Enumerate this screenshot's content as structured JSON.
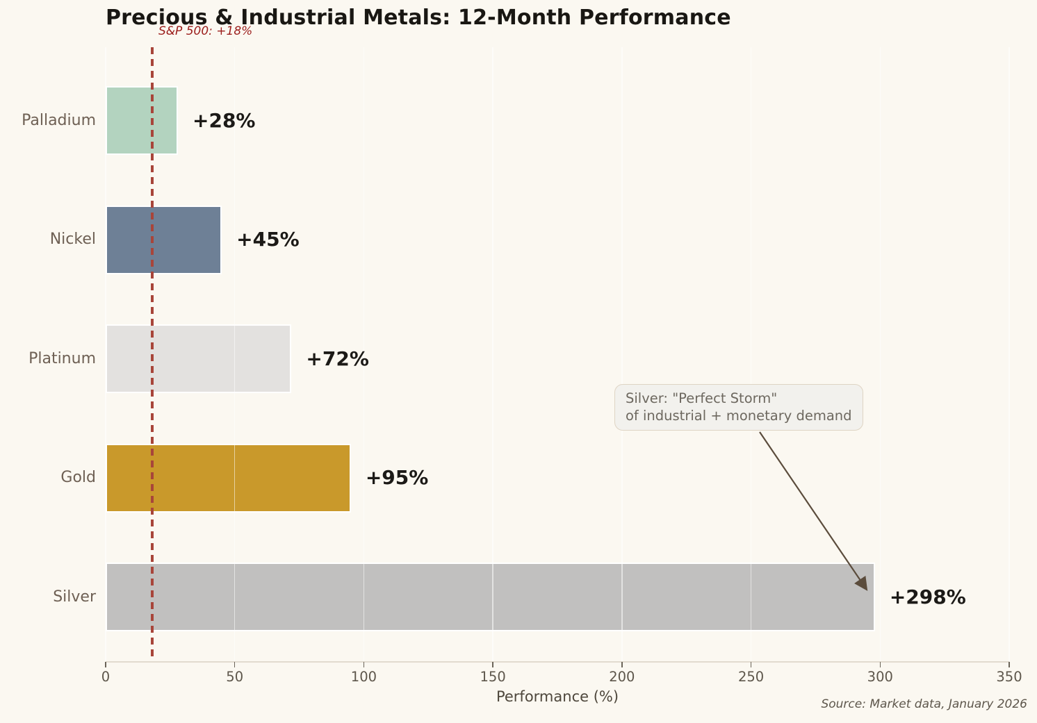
{
  "chart_data": {
    "type": "bar",
    "orientation": "horizontal",
    "title": "Precious & Industrial Metals: 12-Month Performance",
    "categories": [
      "Palladium",
      "Nickel",
      "Platinum",
      "Gold",
      "Silver"
    ],
    "values": [
      28,
      45,
      72,
      95,
      298
    ],
    "value_labels": [
      "+28%",
      "+45%",
      "+72%",
      "+95%",
      "+298%"
    ],
    "bar_colors": [
      "#b3d3bf",
      "#6e8096",
      "#e3e1df",
      "#c9992b",
      "#c1c0bf"
    ],
    "xlabel": "Performance (%)",
    "ylabel": "",
    "xlim": [
      0,
      350
    ],
    "xticks": [
      0,
      50,
      100,
      150,
      200,
      250,
      300,
      350
    ],
    "xtick_labels": [
      "0",
      "50",
      "100",
      "150",
      "200",
      "250",
      "300",
      "350"
    ],
    "grid": "vertical",
    "legend": "none",
    "reference_line": {
      "value": 18,
      "label": "S&P 500: +18%",
      "style": "dashed",
      "color": "#a8453a"
    },
    "annotation": {
      "line1": "Silver: \"Perfect Storm\"",
      "line2": "of industrial + monetary demand",
      "points_to": "Silver bar end"
    },
    "source": "Source: Market data, January 2026"
  },
  "colors": {
    "background": "#fbf8f1",
    "title": "#191713",
    "category_label": "#6e6054",
    "value_label": "#1c1a17",
    "tick_label": "#5d564b",
    "axis_label": "#4e473c",
    "reference_label": "#9b1d1b",
    "annotation_text": "#6d685f",
    "annotation_bg": "#f2f1ed",
    "annotation_border": "#ded4c3",
    "arrow": "#5b4c3c",
    "gridline": "rgba(255,255,255,0.55)",
    "spine": "#e2dbcf"
  }
}
